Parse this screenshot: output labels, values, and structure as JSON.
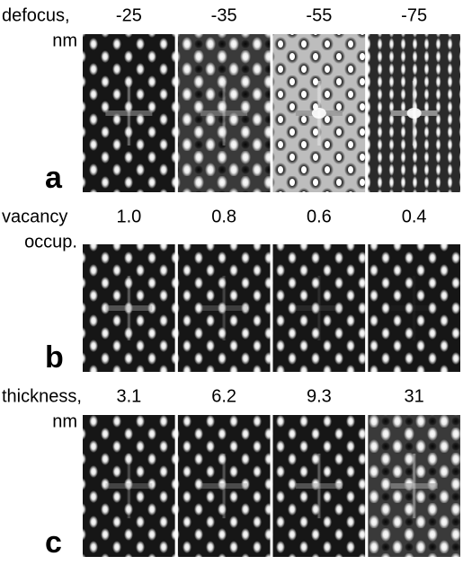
{
  "panels": [
    {
      "letter": "a",
      "label": [
        "defocus,",
        "nm"
      ],
      "columns": [
        "-25",
        "-35",
        "-55",
        "-75"
      ]
    },
    {
      "letter": "b",
      "label": [
        "vacancy",
        "occup."
      ],
      "columns": [
        "1.0",
        "0.8",
        "0.6",
        "0.4"
      ]
    },
    {
      "letter": "c",
      "label": [
        "thickness,",
        "nm"
      ],
      "columns": [
        "3.1",
        "6.2",
        "9.3",
        "31"
      ]
    }
  ]
}
